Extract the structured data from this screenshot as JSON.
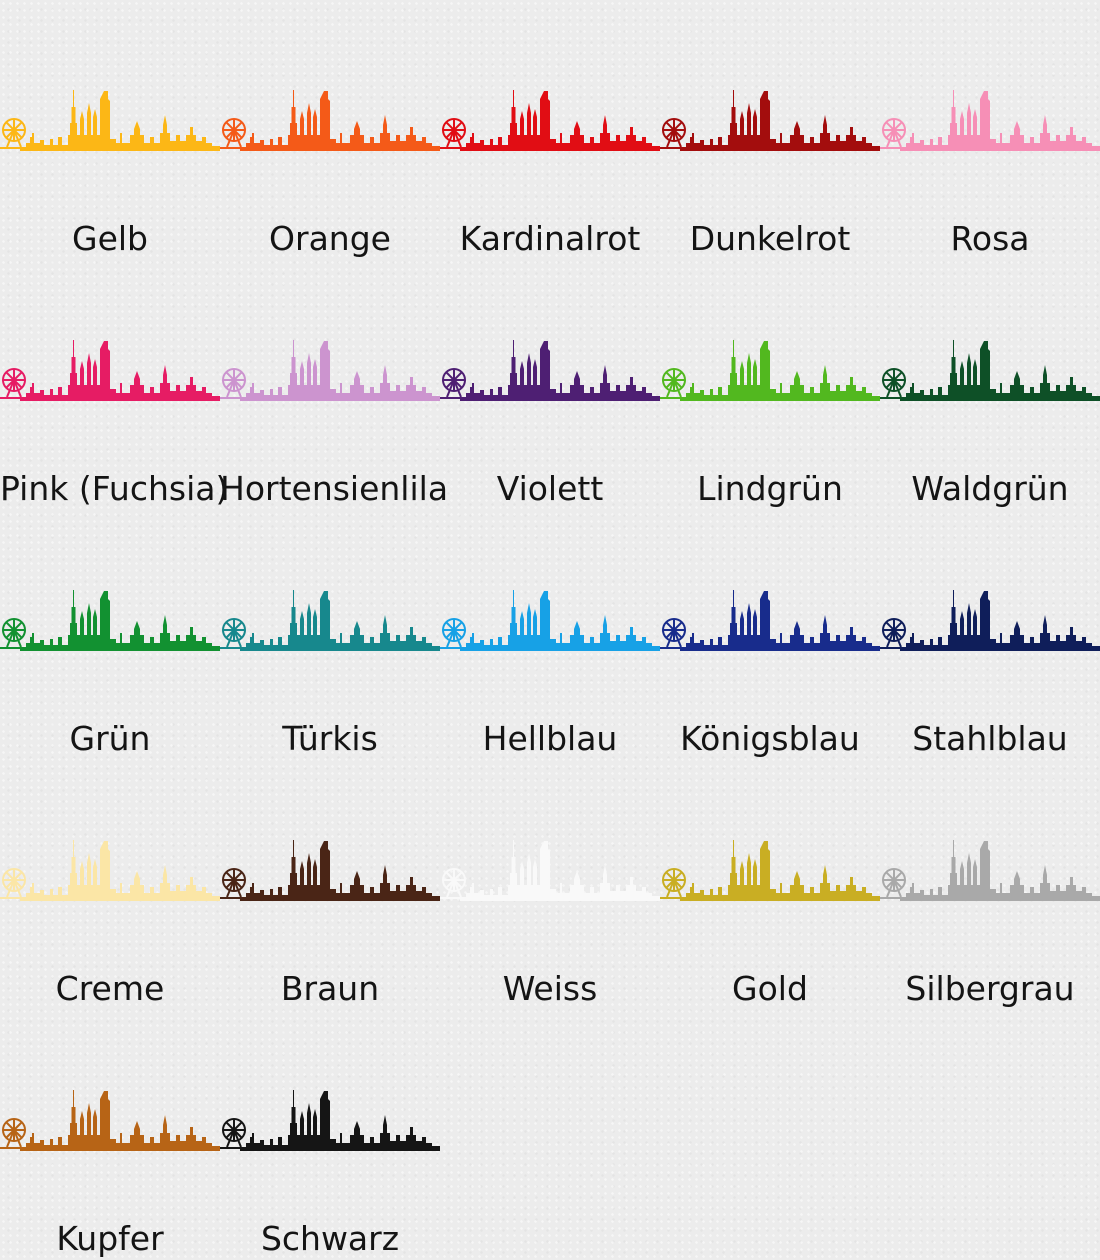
{
  "swatches": [
    {
      "name": "Gelb",
      "color": "#fcb716"
    },
    {
      "name": "Orange",
      "color": "#f45a18"
    },
    {
      "name": "Kardinalrot",
      "color": "#e10d14"
    },
    {
      "name": "Dunkelrot",
      "color": "#a30d0d"
    },
    {
      "name": "Rosa",
      "color": "#f68fb6"
    },
    {
      "name": "Pink (Fuchsia)",
      "color": "#e61c64"
    },
    {
      "name": "Hortensienlila",
      "color": "#cc94cf"
    },
    {
      "name": "Violett",
      "color": "#4e1f73"
    },
    {
      "name": "Lindgrün",
      "color": "#52b81f"
    },
    {
      "name": "Waldgrün",
      "color": "#0e5027"
    },
    {
      "name": "Grün",
      "color": "#129131"
    },
    {
      "name": "Türkis",
      "color": "#17888d"
    },
    {
      "name": "Hellblau",
      "color": "#17a1e6"
    },
    {
      "name": "Königsblau",
      "color": "#182c8c"
    },
    {
      "name": "Stahlblau",
      "color": "#0f1e5a"
    },
    {
      "name": "Creme",
      "color": "#fbe6a6"
    },
    {
      "name": "Braun",
      "color": "#4a2516"
    },
    {
      "name": "Weiss",
      "color": "#f9f9f9"
    },
    {
      "name": "Gold",
      "color": "#c9ae23"
    },
    {
      "name": "Silbergrau",
      "color": "#a9a9a9"
    },
    {
      "name": "Kupfer",
      "color": "#b76416"
    },
    {
      "name": "Schwarz",
      "color": "#151515"
    }
  ]
}
